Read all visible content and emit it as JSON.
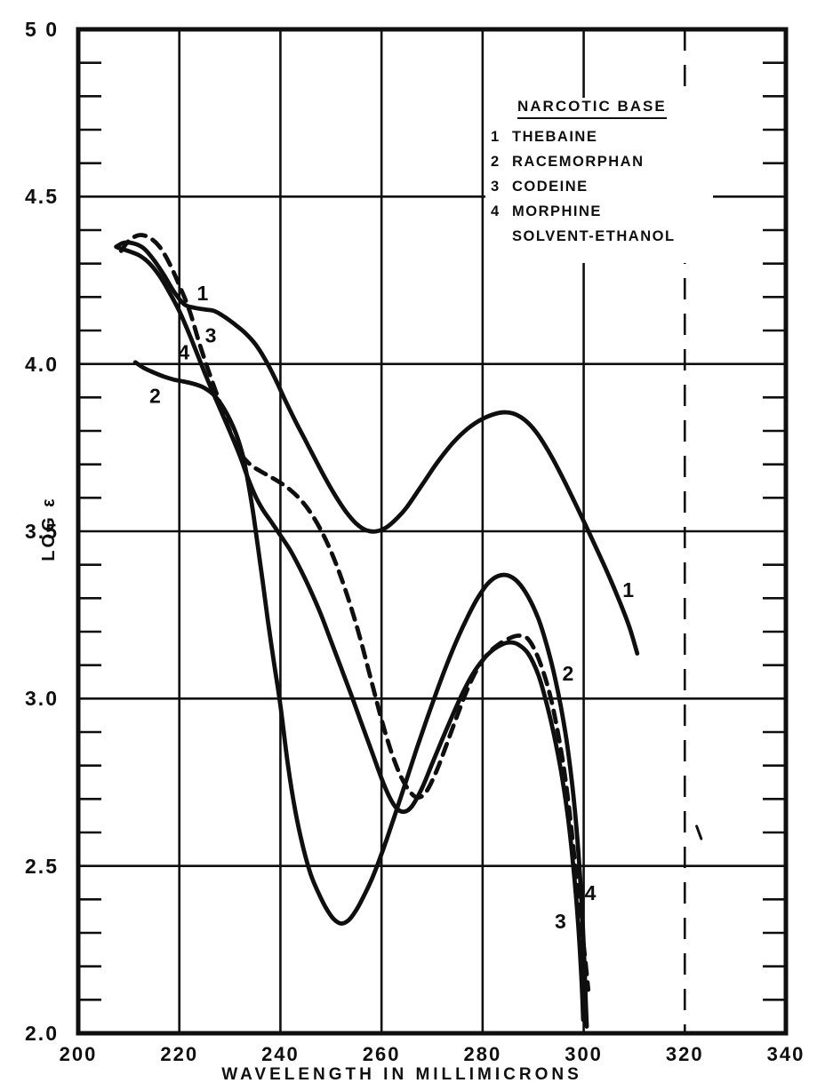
{
  "figure": {
    "background": "#ffffff",
    "ink": "#0f0f0f"
  },
  "chart_data": {
    "type": "line",
    "title": "",
    "xlabel": "WAVELENGTH IN MILLIMICRONS",
    "ylabel": "LOG ε",
    "xlim": [
      200,
      340
    ],
    "ylim": [
      2.0,
      5.0
    ],
    "grid": "major-both",
    "x_major_ticks": [
      {
        "v": 200,
        "label": "200"
      },
      {
        "v": 220,
        "label": "220"
      },
      {
        "v": 240,
        "label": "240"
      },
      {
        "v": 260,
        "label": "260"
      },
      {
        "v": 280,
        "label": "280"
      },
      {
        "v": 300,
        "label": "300"
      },
      {
        "v": 320,
        "label": "320"
      },
      {
        "v": 340,
        "label": "340"
      }
    ],
    "y_major_ticks": [
      {
        "v": 5.0,
        "label": "5 0"
      },
      {
        "v": 4.5,
        "label": "4.5"
      },
      {
        "v": 4.0,
        "label": "4.0"
      },
      {
        "v": 3.5,
        "label": "3.5"
      },
      {
        "v": 3.0,
        "label": "3.0"
      },
      {
        "v": 2.5,
        "label": "2.5"
      },
      {
        "v": 2.0,
        "label": "2.0"
      }
    ],
    "y_minor_step": 0.1,
    "broken_gridlines_x": [
      320
    ],
    "legend": {
      "title": "NARCOTIC BASE",
      "entries": [
        {
          "num": "1",
          "label": "THEBAINE"
        },
        {
          "num": "2",
          "label": "RACEMORPHAN"
        },
        {
          "num": "3",
          "label": "CODEINE"
        },
        {
          "num": "4",
          "label": "MORPHINE"
        }
      ],
      "footer": "SOLVENT-ETHANOL"
    },
    "series": [
      {
        "id": "1",
        "name": "THEBAINE",
        "style": "solid",
        "points": [
          [
            207.5,
            4.35
          ],
          [
            209,
            4.362
          ],
          [
            211,
            4.36
          ],
          [
            213,
            4.345
          ],
          [
            215,
            4.31
          ],
          [
            217,
            4.265
          ],
          [
            219,
            4.215
          ],
          [
            221,
            4.178
          ],
          [
            223,
            4.168
          ],
          [
            225,
            4.163
          ],
          [
            227,
            4.158
          ],
          [
            229,
            4.14
          ],
          [
            231,
            4.118
          ],
          [
            233,
            4.093
          ],
          [
            235,
            4.06
          ],
          [
            237,
            4.013
          ],
          [
            239,
            3.955
          ],
          [
            241,
            3.89
          ],
          [
            243,
            3.828
          ],
          [
            245,
            3.77
          ],
          [
            247,
            3.712
          ],
          [
            249,
            3.655
          ],
          [
            251,
            3.603
          ],
          [
            253,
            3.558
          ],
          [
            255,
            3.523
          ],
          [
            257,
            3.503
          ],
          [
            259,
            3.5
          ],
          [
            261,
            3.512
          ],
          [
            263,
            3.538
          ],
          [
            265,
            3.572
          ],
          [
            268,
            3.638
          ],
          [
            271,
            3.705
          ],
          [
            274,
            3.762
          ],
          [
            277,
            3.806
          ],
          [
            280,
            3.836
          ],
          [
            283,
            3.853
          ],
          [
            285,
            3.855
          ],
          [
            287,
            3.846
          ],
          [
            289,
            3.824
          ],
          [
            291,
            3.788
          ],
          [
            293,
            3.74
          ],
          [
            295,
            3.685
          ],
          [
            297,
            3.625
          ],
          [
            299,
            3.562
          ],
          [
            301,
            3.498
          ],
          [
            303,
            3.433
          ],
          [
            305,
            3.366
          ],
          [
            307,
            3.294
          ],
          [
            309,
            3.216
          ],
          [
            310.6,
            3.135
          ]
        ]
      },
      {
        "id": "2",
        "name": "RACEMORPHAN",
        "style": "solid",
        "points": [
          [
            211.3,
            4.005
          ],
          [
            213,
            3.988
          ],
          [
            215,
            3.974
          ],
          [
            217,
            3.962
          ],
          [
            219,
            3.953
          ],
          [
            221,
            3.947
          ],
          [
            223,
            3.94
          ],
          [
            225,
            3.928
          ],
          [
            227,
            3.905
          ],
          [
            229,
            3.862
          ],
          [
            231,
            3.8
          ],
          [
            232.5,
            3.73
          ],
          [
            233.5,
            3.655
          ],
          [
            234.5,
            3.565
          ],
          [
            235.5,
            3.46
          ],
          [
            236.5,
            3.35
          ],
          [
            237.5,
            3.235
          ],
          [
            238.8,
            3.1
          ],
          [
            240,
            2.98
          ],
          [
            241.5,
            2.8
          ],
          [
            243,
            2.66
          ],
          [
            244.5,
            2.555
          ],
          [
            246,
            2.475
          ],
          [
            247.5,
            2.42
          ],
          [
            249,
            2.375
          ],
          [
            250.5,
            2.342
          ],
          [
            252,
            2.328
          ],
          [
            253.5,
            2.338
          ],
          [
            255,
            2.368
          ],
          [
            256.5,
            2.41
          ],
          [
            258,
            2.458
          ],
          [
            259.5,
            2.515
          ],
          [
            261,
            2.578
          ],
          [
            263,
            2.668
          ],
          [
            265,
            2.76
          ],
          [
            267,
            2.852
          ],
          [
            269,
            2.94
          ],
          [
            271,
            3.025
          ],
          [
            273,
            3.105
          ],
          [
            275,
            3.178
          ],
          [
            277,
            3.243
          ],
          [
            279,
            3.3
          ],
          [
            281,
            3.343
          ],
          [
            283,
            3.366
          ],
          [
            285,
            3.368
          ],
          [
            287,
            3.348
          ],
          [
            289,
            3.305
          ],
          [
            291,
            3.24
          ],
          [
            292.5,
            3.17
          ],
          [
            294,
            3.083
          ],
          [
            295.5,
            2.975
          ],
          [
            296.8,
            2.855
          ],
          [
            298,
            2.705
          ],
          [
            299,
            2.53
          ],
          [
            299.8,
            2.33
          ],
          [
            300.4,
            2.1
          ],
          [
            300.6,
            2.02
          ]
        ]
      },
      {
        "id": "3",
        "name": "CODEINE",
        "style": "dashed",
        "points": [
          [
            208.5,
            4.338
          ],
          [
            210,
            4.368
          ],
          [
            212,
            4.385
          ],
          [
            214,
            4.378
          ],
          [
            216,
            4.352
          ],
          [
            218,
            4.302
          ],
          [
            220,
            4.235
          ],
          [
            222,
            4.16
          ],
          [
            224,
            4.06
          ],
          [
            226,
            3.97
          ],
          [
            228,
            3.885
          ],
          [
            230,
            3.8
          ],
          [
            232,
            3.735
          ],
          [
            234,
            3.7
          ],
          [
            236,
            3.68
          ],
          [
            238,
            3.663
          ],
          [
            240,
            3.645
          ],
          [
            242,
            3.623
          ],
          [
            244,
            3.594
          ],
          [
            246,
            3.555
          ],
          [
            248,
            3.504
          ],
          [
            250,
            3.44
          ],
          [
            252,
            3.362
          ],
          [
            254,
            3.272
          ],
          [
            256,
            3.168
          ],
          [
            258,
            3.052
          ],
          [
            260,
            2.938
          ],
          [
            262,
            2.838
          ],
          [
            264,
            2.762
          ],
          [
            266,
            2.715
          ],
          [
            267.5,
            2.705
          ],
          [
            269,
            2.725
          ],
          [
            271,
            2.788
          ],
          [
            273,
            2.868
          ],
          [
            275,
            2.95
          ],
          [
            277,
            3.028
          ],
          [
            279,
            3.09
          ],
          [
            281,
            3.133
          ],
          [
            283,
            3.16
          ],
          [
            285,
            3.178
          ],
          [
            287,
            3.188
          ],
          [
            289,
            3.178
          ],
          [
            291,
            3.122
          ],
          [
            293,
            3.03
          ],
          [
            294.5,
            2.93
          ],
          [
            296,
            2.8
          ],
          [
            297.2,
            2.66
          ],
          [
            298.2,
            2.52
          ],
          [
            299.2,
            2.37
          ],
          [
            300.2,
            2.235
          ],
          [
            300.9,
            2.13
          ]
        ]
      },
      {
        "id": "4",
        "name": "MORPHINE",
        "style": "solid",
        "points": [
          [
            207.8,
            4.348
          ],
          [
            210,
            4.337
          ],
          [
            212,
            4.325
          ],
          [
            214,
            4.302
          ],
          [
            216,
            4.265
          ],
          [
            218,
            4.215
          ],
          [
            220,
            4.158
          ],
          [
            222,
            4.088
          ],
          [
            224,
            4.012
          ],
          [
            226,
            3.938
          ],
          [
            228,
            3.868
          ],
          [
            230,
            3.798
          ],
          [
            232,
            3.725
          ],
          [
            233.5,
            3.662
          ],
          [
            235,
            3.607
          ],
          [
            236.5,
            3.565
          ],
          [
            238,
            3.532
          ],
          [
            240,
            3.488
          ],
          [
            242,
            3.442
          ],
          [
            244,
            3.385
          ],
          [
            246,
            3.322
          ],
          [
            248,
            3.252
          ],
          [
            250,
            3.172
          ],
          [
            252,
            3.092
          ],
          [
            254,
            3.012
          ],
          [
            256,
            2.928
          ],
          [
            258,
            2.845
          ],
          [
            260,
            2.762
          ],
          [
            261.5,
            2.708
          ],
          [
            263,
            2.672
          ],
          [
            264.5,
            2.662
          ],
          [
            266,
            2.678
          ],
          [
            268,
            2.732
          ],
          [
            270,
            2.805
          ],
          [
            272,
            2.878
          ],
          [
            274,
            2.948
          ],
          [
            276,
            3.015
          ],
          [
            278,
            3.072
          ],
          [
            280,
            3.115
          ],
          [
            282,
            3.145
          ],
          [
            284,
            3.163
          ],
          [
            285.5,
            3.168
          ],
          [
            287,
            3.162
          ],
          [
            289,
            3.135
          ],
          [
            291,
            3.072
          ],
          [
            292.5,
            2.995
          ],
          [
            294,
            2.9
          ],
          [
            295.5,
            2.785
          ],
          [
            296.8,
            2.655
          ],
          [
            297.8,
            2.52
          ],
          [
            298.8,
            2.35
          ],
          [
            299.6,
            2.15
          ],
          [
            299.9,
            2.04
          ]
        ]
      }
    ],
    "curve_labels": [
      {
        "text": "1",
        "x": 224.6,
        "y": 4.212
      },
      {
        "text": "3",
        "x": 226.2,
        "y": 4.085
      },
      {
        "text": "4",
        "x": 220.9,
        "y": 4.035
      },
      {
        "text": "2",
        "x": 215.2,
        "y": 3.905
      },
      {
        "text": "1",
        "x": 308.8,
        "y": 3.325
      },
      {
        "text": "2",
        "x": 296.9,
        "y": 3.075
      },
      {
        "text": "4",
        "x": 301.3,
        "y": 2.42
      },
      {
        "text": "3",
        "x": 295.4,
        "y": 2.335
      }
    ],
    "stray_marks": [
      {
        "x": 322.8,
        "y": 2.6,
        "angle": -20,
        "len": 15
      }
    ]
  }
}
